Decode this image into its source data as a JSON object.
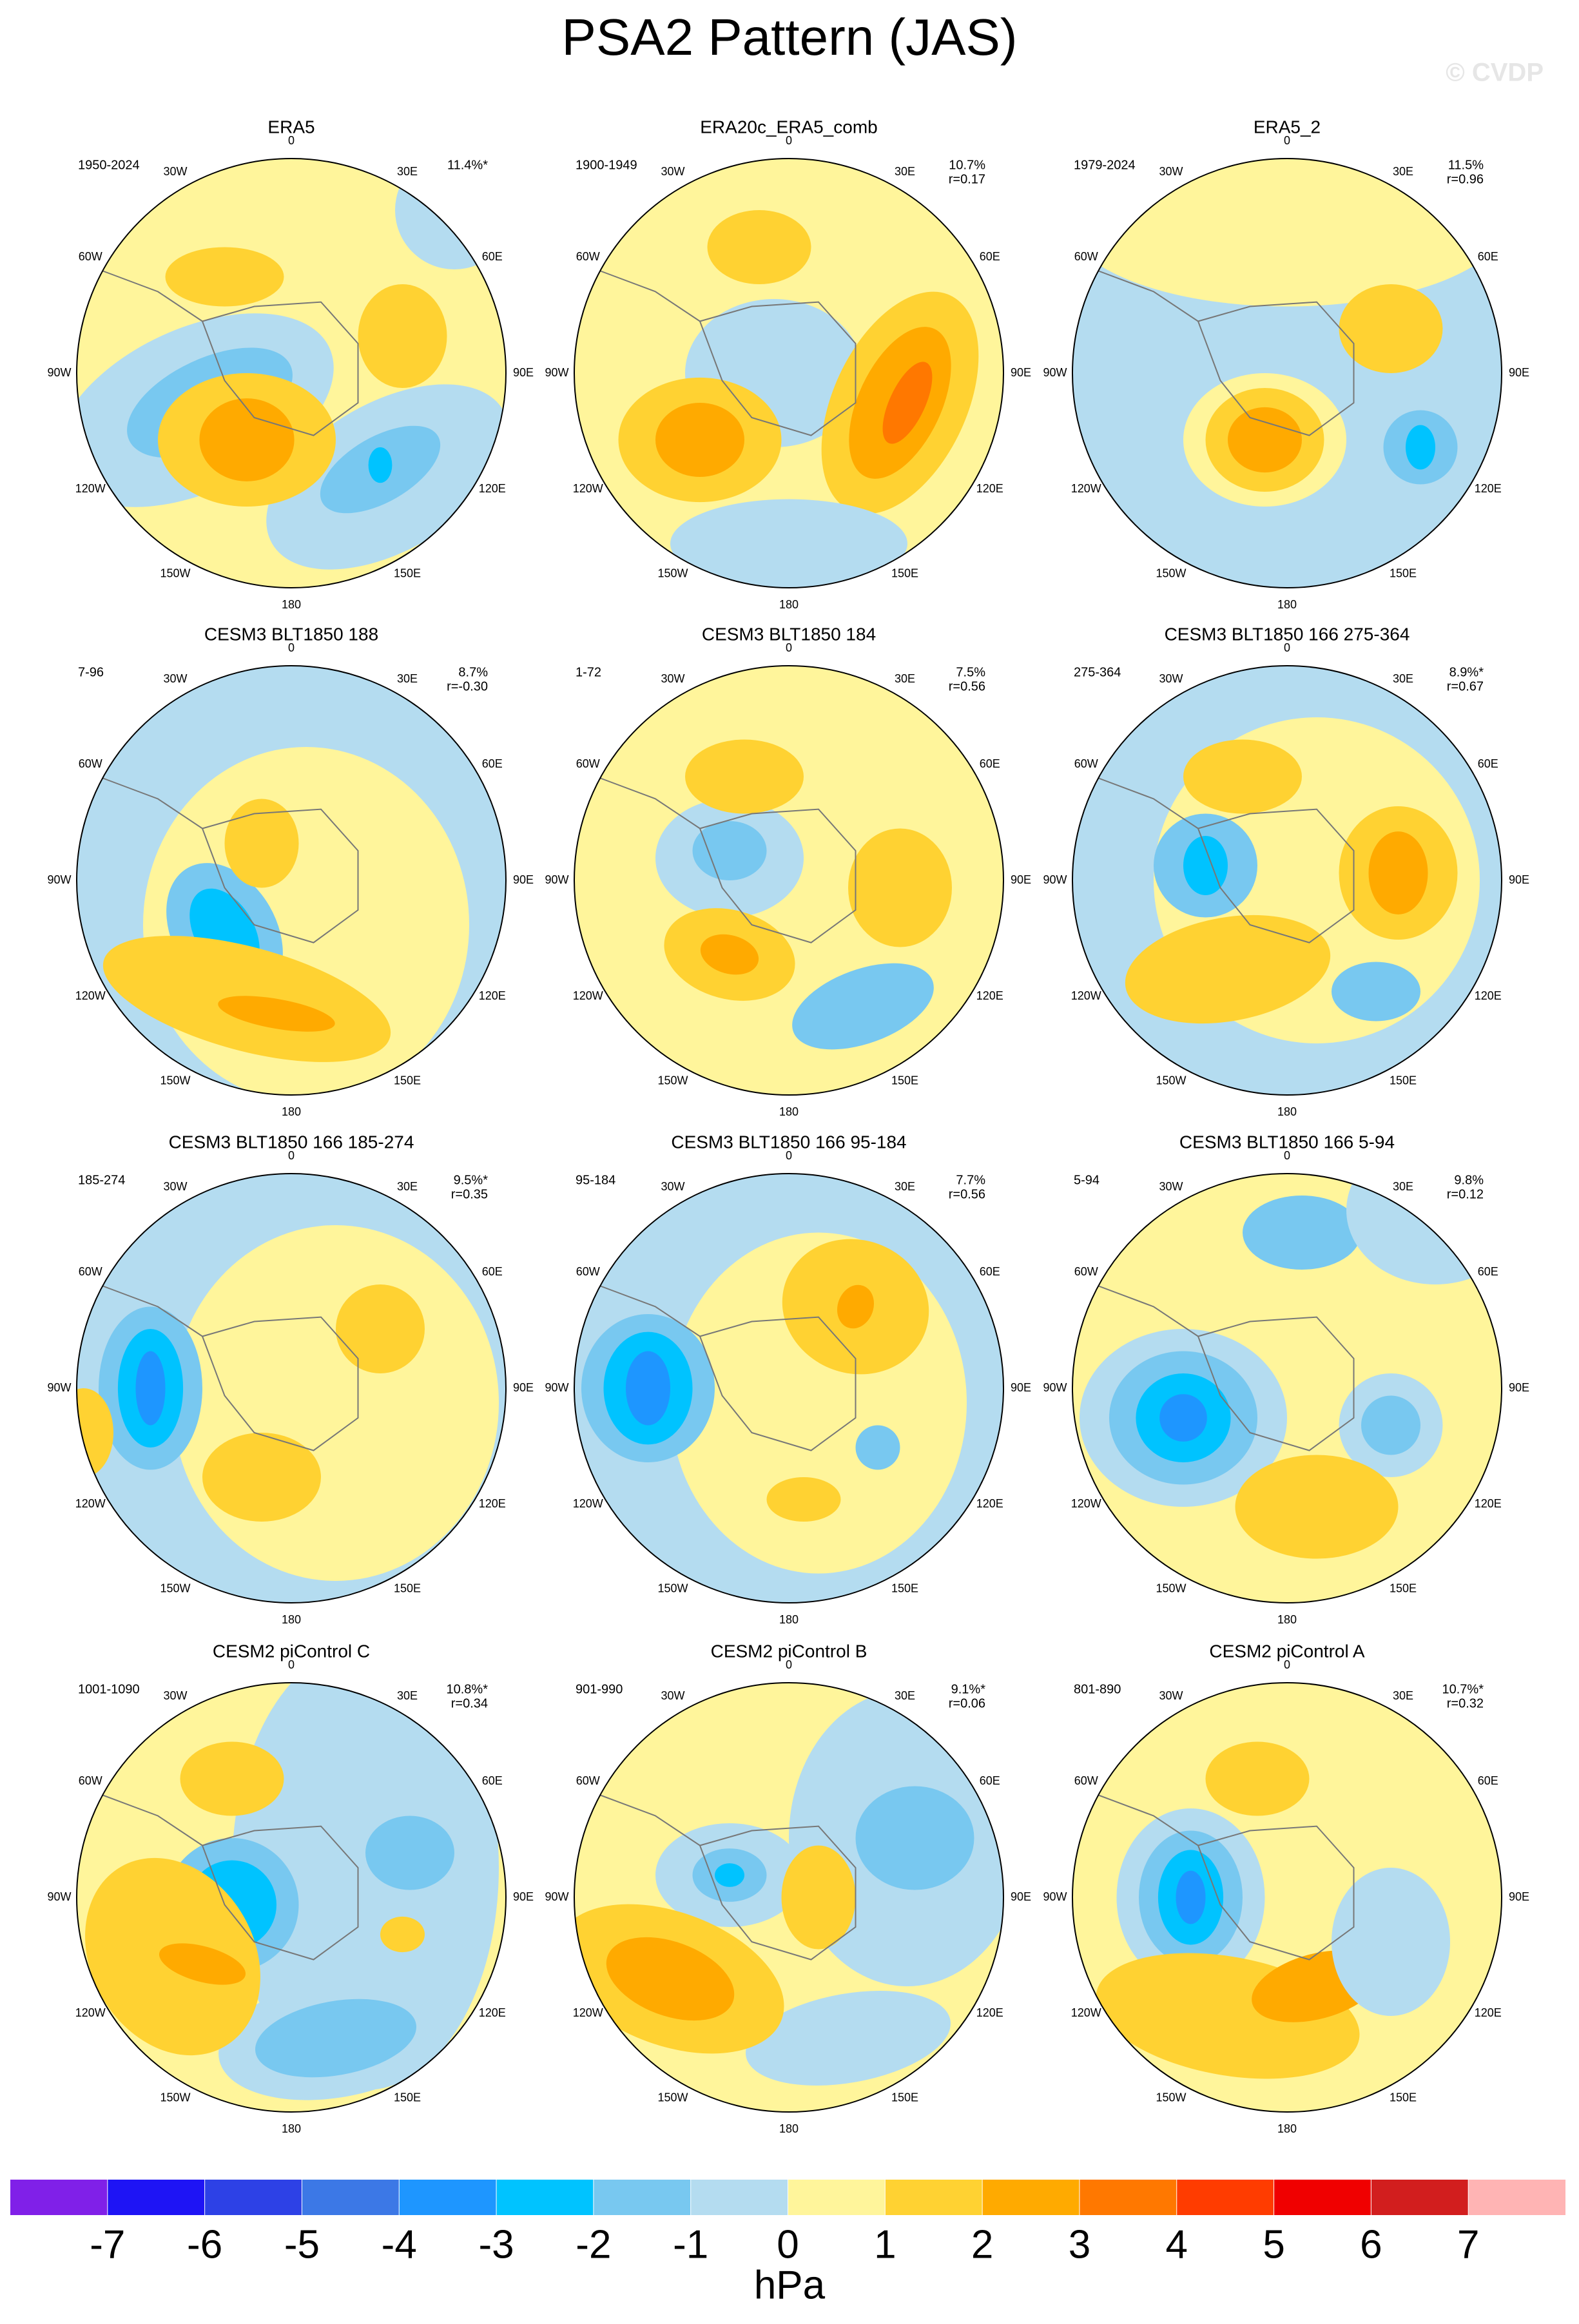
{
  "title": "PSA2 Pattern (JAS)",
  "watermark": "© CVDP",
  "lon_labels": [
    "0",
    "30E",
    "60E",
    "90E",
    "120E",
    "150E",
    "180",
    "150W",
    "120W",
    "90W",
    "60W",
    "30W"
  ],
  "panels": [
    {
      "title": "ERA5",
      "period": "1950-2024",
      "variance": "11.4%*"
    },
    {
      "title": "ERA20c_ERA5_comb",
      "period": "1900-1949",
      "variance": "10.7%",
      "r": "r=0.17"
    },
    {
      "title": "ERA5_2",
      "period": "1979-2024",
      "variance": "11.5%",
      "r": "r=0.96"
    },
    {
      "title": "CESM3 BLT1850 188",
      "period": "7-96",
      "variance": "8.7%",
      "r": "r=-0.30"
    },
    {
      "title": "CESM3 BLT1850 184",
      "period": "1-72",
      "variance": "7.5%",
      "r": "r=0.56"
    },
    {
      "title": "CESM3 BLT1850 166 275-364",
      "period": "275-364",
      "variance": "8.9%*",
      "r": "r=0.67"
    },
    {
      "title": "CESM3 BLT1850 166 185-274",
      "period": "185-274",
      "variance": "9.5%*",
      "r": "r=0.35"
    },
    {
      "title": "CESM3 BLT1850 166 95-184",
      "period": "95-184",
      "variance": "7.7%",
      "r": "r=0.56"
    },
    {
      "title": "CESM3 BLT1850 166 5-94",
      "period": "5-94",
      "variance": "9.8%",
      "r": "r=0.12"
    },
    {
      "title": "CESM2 piControl C",
      "period": "1001-1090",
      "variance": "10.8%*",
      "r": "r=0.34"
    },
    {
      "title": "CESM2 piControl B",
      "period": "901-990",
      "variance": "9.1%*",
      "r": "r=0.06"
    },
    {
      "title": "CESM2 piControl A",
      "period": "801-890",
      "variance": "10.7%*",
      "r": "r=0.32"
    }
  ],
  "colorbar": {
    "levels": [
      -7,
      -6,
      -5,
      -4,
      -3,
      -2,
      -1,
      0,
      1,
      2,
      3,
      4,
      5,
      6,
      7
    ],
    "colors": [
      "#8020e8",
      "#1e14f5",
      "#2d41e6",
      "#3c78e6",
      "#1e96ff",
      "#00c3ff",
      "#78c8f0",
      "#b4dcf0",
      "#fff59b",
      "#ffd232",
      "#ffaa00",
      "#ff7800",
      "#ff3c00",
      "#f00000",
      "#d21e1e",
      "#ffb4b4"
    ],
    "unit": "hPa"
  }
}
